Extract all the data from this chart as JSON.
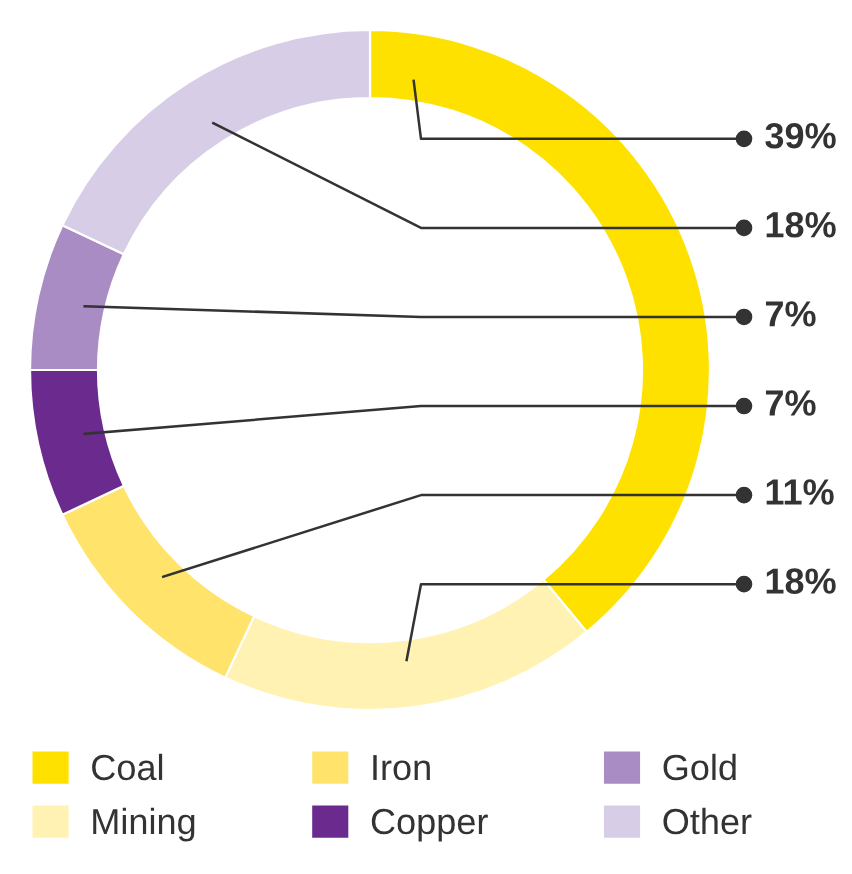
{
  "chart_data": {
    "type": "donut",
    "categories": [
      "Coal",
      "Mining",
      "Iron",
      "Copper",
      "Gold",
      "Other"
    ],
    "values": [
      39,
      18,
      11,
      7,
      7,
      18
    ],
    "colors": [
      "#ffe100",
      "#fff2b3",
      "#ffe36b",
      "#6a2a8e",
      "#a98cc4",
      "#d8cde6"
    ],
    "value_labels": [
      "39%",
      "18%",
      "11%",
      "7%",
      "7%",
      "18%"
    ],
    "legend": "bottom"
  }
}
